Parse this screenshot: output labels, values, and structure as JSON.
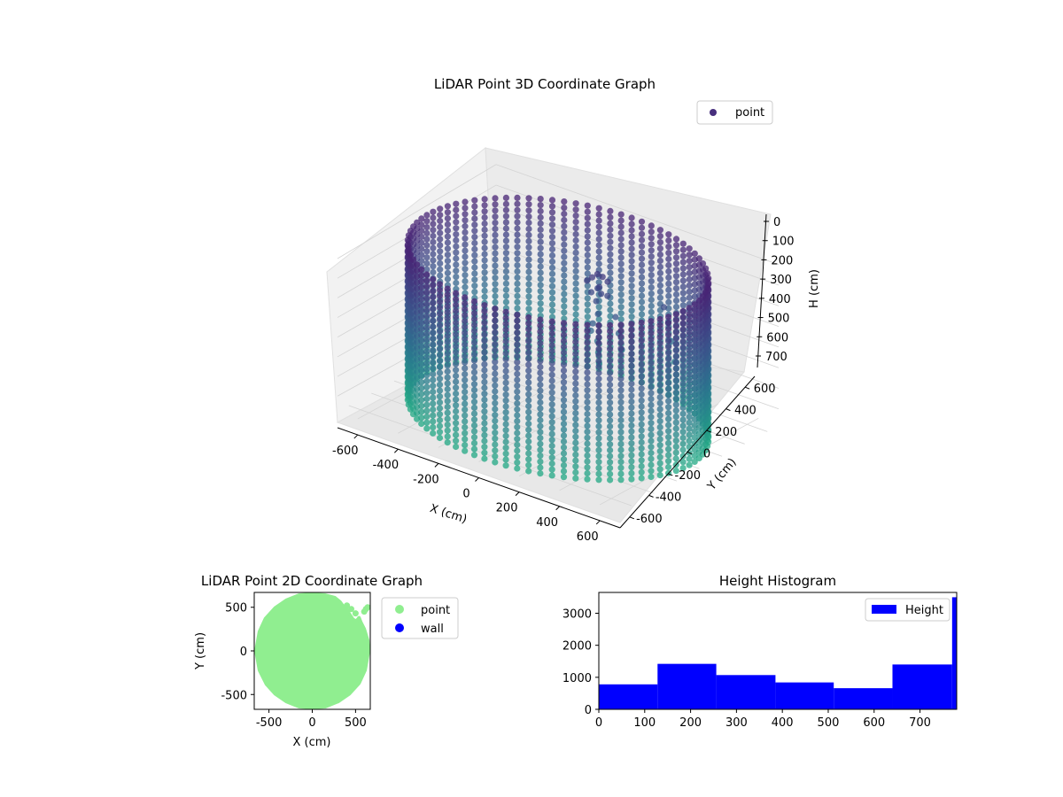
{
  "chart_data": [
    {
      "type": "scatter",
      "projection": "3d",
      "title": "LiDAR Point 3D Coordinate Graph",
      "xlabel": "X (cm)",
      "ylabel": "Y (cm)",
      "zlabel": "H (cm)",
      "xlim": [
        -700,
        700
      ],
      "ylim": [
        -700,
        700
      ],
      "zlim": [
        780,
        0
      ],
      "zinverted": true,
      "xticks": [
        -600,
        -400,
        -200,
        0,
        200,
        400,
        600
      ],
      "yticks": [
        -600,
        -400,
        -200,
        0,
        200,
        400,
        600
      ],
      "zticks": [
        0,
        100,
        200,
        300,
        400,
        500,
        600,
        700
      ],
      "grid": true,
      "legend": {
        "placement": "top-right",
        "entries": [
          "point"
        ]
      },
      "colormap": "viridis (colored by height)",
      "colors": {
        "legend_marker": "#472f7d",
        "top": "#482475",
        "bottom": "#22a884"
      },
      "series": [
        {
          "name": "point",
          "description": "cylindrical wall of columns, radius about 650 cm, heights 0-780 cm, plus structure near origin",
          "wall": {
            "radius": 650,
            "column_count": 80,
            "h_range": [
              0,
              780
            ],
            "h_step": 30
          },
          "structure_points": [
            [
              60,
              240,
              120
            ],
            [
              80,
              250,
              130
            ],
            [
              100,
              260,
              150
            ],
            [
              40,
              230,
              140
            ],
            [
              20,
              220,
              160
            ],
            [
              70,
              240,
              180
            ],
            [
              90,
              220,
              200
            ],
            [
              110,
              240,
              210
            ],
            [
              50,
              260,
              200
            ],
            [
              30,
              240,
              220
            ],
            [
              60,
              230,
              250
            ],
            [
              80,
              210,
              300
            ],
            [
              60,
              200,
              350
            ],
            [
              40,
              220,
              400
            ],
            [
              60,
              240,
              450
            ],
            [
              70,
              230,
              500
            ],
            [
              80,
              220,
              550
            ],
            [
              150,
              240,
              300
            ],
            [
              160,
              250,
              380
            ],
            [
              170,
              260,
              460
            ],
            [
              300,
              400,
              250
            ],
            [
              310,
              420,
              330
            ],
            [
              320,
              430,
              420
            ],
            [
              330,
              440,
              520
            ]
          ]
        }
      ]
    },
    {
      "type": "scatter",
      "title": "LiDAR Point 2D Coordinate Graph",
      "xlabel": "X (cm)",
      "ylabel": "Y (cm)",
      "xlim": [
        -670,
        670
      ],
      "ylim": [
        -670,
        670
      ],
      "xticks": [
        -500,
        0,
        500
      ],
      "yticks": [
        -500,
        0,
        500
      ],
      "legend": {
        "placement": "outside-right",
        "entries": [
          "point",
          "wall"
        ]
      },
      "series": [
        {
          "name": "point",
          "color": "#90ee90",
          "description": "filled disc of points of radius about 650 cm with a notch near the top-right",
          "outline": [
            [
              650,
              0
            ],
            [
              640,
              120
            ],
            [
              600,
              250
            ],
            [
              560,
              330
            ],
            [
              540,
              380
            ],
            [
              510,
              340
            ],
            [
              470,
              360
            ],
            [
              430,
              420
            ],
            [
              400,
              470
            ],
            [
              350,
              520
            ],
            [
              320,
              560
            ],
            [
              260,
              610
            ],
            [
              150,
              640
            ],
            [
              0,
              650
            ],
            [
              -150,
              640
            ],
            [
              -300,
              580
            ],
            [
              -430,
              490
            ],
            [
              -540,
              370
            ],
            [
              -610,
              220
            ],
            [
              -650,
              0
            ],
            [
              -610,
              -220
            ],
            [
              -530,
              -380
            ],
            [
              -430,
              -490
            ],
            [
              -300,
              -580
            ],
            [
              -150,
              -640
            ],
            [
              0,
              -650
            ],
            [
              150,
              -640
            ],
            [
              300,
              -580
            ],
            [
              430,
              -490
            ],
            [
              540,
              -370
            ],
            [
              610,
              -220
            ]
          ],
          "stray_points": [
            [
              400,
              520
            ],
            [
              450,
              480
            ],
            [
              500,
              430
            ],
            [
              600,
              450
            ],
            [
              620,
              480
            ],
            [
              640,
              500
            ]
          ]
        },
        {
          "name": "wall",
          "color": "#0000ff",
          "points": []
        }
      ]
    },
    {
      "type": "bar",
      "subtype": "histogram",
      "title": "Height Histogram",
      "xlabel": "",
      "ylabel": "",
      "xlim": [
        0,
        780
      ],
      "ylim": [
        0,
        3650
      ],
      "xticks": [
        0,
        100,
        200,
        300,
        400,
        500,
        600,
        700
      ],
      "yticks": [
        0,
        1000,
        2000,
        3000
      ],
      "legend": {
        "placement": "top-right",
        "entries": [
          "Height"
        ]
      },
      "series": [
        {
          "name": "Height",
          "color": "#0000ff",
          "bins": [
            {
              "from": 0,
              "to": 128,
              "value": 780
            },
            {
              "from": 128,
              "to": 256,
              "value": 1420
            },
            {
              "from": 256,
              "to": 385,
              "value": 1070
            },
            {
              "from": 385,
              "to": 512,
              "value": 840
            },
            {
              "from": 512,
              "to": 640,
              "value": 660
            },
            {
              "from": 640,
              "to": 770,
              "value": 1400
            },
            {
              "from": 770,
              "to": 780,
              "value": 3500
            }
          ]
        }
      ]
    }
  ]
}
